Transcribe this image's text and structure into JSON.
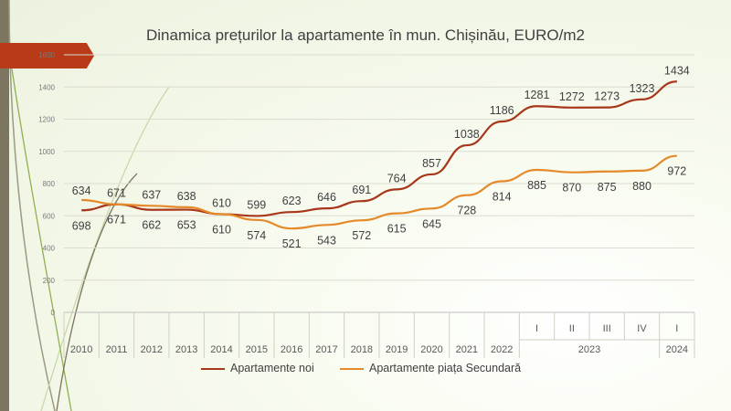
{
  "colors": {
    "accent": "#b83a17",
    "series_new": "#a8361b",
    "series_secondary": "#e58a2a",
    "band": "#7c7560"
  },
  "chart_data": {
    "type": "line",
    "title": "Dinamica prețurilor la apartamente în mun. Chișinău, EURO/m2",
    "xlabel": "",
    "ylabel": "",
    "ylim": [
      0,
      1600
    ],
    "yticks": [
      0,
      200,
      400,
      600,
      800,
      1000,
      1200,
      1400,
      1600
    ],
    "grid": true,
    "legend_position": "bottom",
    "categories": [
      "2010",
      "2011",
      "2012",
      "2013",
      "2014",
      "2015",
      "2016",
      "2017",
      "2018",
      "2019",
      "2020",
      "2021",
      "2022",
      "I",
      "II",
      "III",
      "IV",
      "I"
    ],
    "category_groups": [
      {
        "label": "2023",
        "start": 13,
        "end": 16
      },
      {
        "label": "2024",
        "start": 17,
        "end": 17
      }
    ],
    "series": [
      {
        "name": "Apartamente noi",
        "values": [
          634,
          671,
          637,
          638,
          610,
          599,
          623,
          646,
          691,
          764,
          857,
          1038,
          1186,
          1281,
          1272,
          1273,
          1323,
          1434
        ]
      },
      {
        "name": "Apartamente piața Secundară",
        "values": [
          698,
          671,
          662,
          653,
          610,
          574,
          521,
          543,
          572,
          615,
          645,
          728,
          814,
          885,
          870,
          875,
          880,
          972
        ]
      }
    ]
  }
}
